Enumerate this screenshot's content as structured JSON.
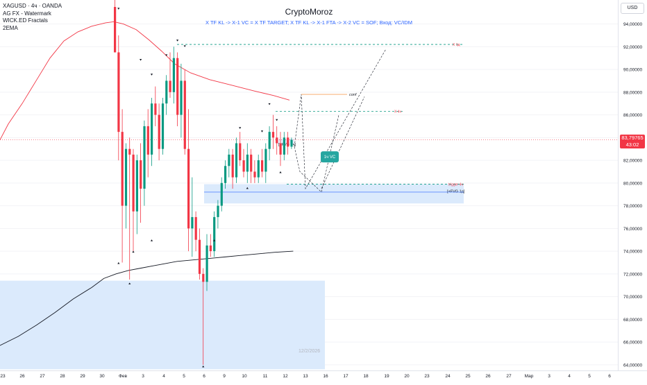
{
  "header": {
    "symbol_line": "XAGUSD · 4ч · OANDA",
    "indicators": [
      "AG FX - Watermark",
      "WICK.ED Fractals",
      "2EMA"
    ]
  },
  "watermark": {
    "title": "CryptoMoroz",
    "subtitle": "X TF KL -> X-1 VC = X TF TARGET; X TF KL -> X-1 FTA -> X-2 VC = SOF; Вход: VC/IDM",
    "date_text": "12/2/2026"
  },
  "currency_button": "USD",
  "last_price": {
    "value": "83,79765",
    "timer": "43:02",
    "color": "#f23645"
  },
  "colors": {
    "up": "#089981",
    "down": "#f23645",
    "ema_fast": "#f23645",
    "ema_slow": "#131722",
    "zone": "#dbeafc",
    "accent": "#2962ff"
  },
  "chart_data": {
    "type": "candlestick",
    "title": "CryptoMoroz",
    "y_axis": {
      "range": [
        63.5,
        95.5
      ],
      "ticks": [
        "94,00000",
        "92,00000",
        "90,00000",
        "88,00000",
        "86,00000",
        "84,00000",
        "82,00000",
        "80,00000",
        "78,00000",
        "76,00000",
        "74,00000",
        "72,00000",
        "70,00000",
        "68,00000",
        "66,00000",
        "64,00000"
      ]
    },
    "x_axis": {
      "labels": [
        "23",
        "26",
        "27",
        "28",
        "29",
        "30",
        "Фев",
        "3",
        "4",
        "5",
        "6",
        "9",
        "10",
        "11",
        "12",
        "13",
        "16",
        "17",
        "18",
        "19",
        "20",
        "23",
        "24",
        "25",
        "26",
        "27",
        "Мар",
        "3",
        "4",
        "5",
        "6"
      ]
    },
    "candles": [
      {
        "o": 95.5,
        "h": 96.5,
        "l": 91.5,
        "c": 91.5
      },
      {
        "o": 91.5,
        "h": 93.0,
        "l": 82.0,
        "c": 84.5
      },
      {
        "o": 84.5,
        "h": 86.5,
        "l": 73.0,
        "c": 78.0
      },
      {
        "o": 78.0,
        "h": 83.5,
        "l": 76.0,
        "c": 83.0
      },
      {
        "o": 83.0,
        "h": 84.0,
        "l": 71.5,
        "c": 82.5
      },
      {
        "o": 82.5,
        "h": 83.0,
        "l": 74.0,
        "c": 77.5
      },
      {
        "o": 77.5,
        "h": 82.5,
        "l": 75.5,
        "c": 82.0
      },
      {
        "o": 82.0,
        "h": 83.5,
        "l": 76.5,
        "c": 79.5
      },
      {
        "o": 79.5,
        "h": 85.5,
        "l": 78.0,
        "c": 85.0
      },
      {
        "o": 85.0,
        "h": 86.5,
        "l": 80.5,
        "c": 82.5
      },
      {
        "o": 82.5,
        "h": 87.5,
        "l": 81.5,
        "c": 87.0
      },
      {
        "o": 87.0,
        "h": 88.5,
        "l": 85.0,
        "c": 86.0
      },
      {
        "o": 86.0,
        "h": 87.0,
        "l": 82.0,
        "c": 83.0
      },
      {
        "o": 83.0,
        "h": 87.5,
        "l": 82.5,
        "c": 87.0
      },
      {
        "o": 87.0,
        "h": 89.5,
        "l": 86.0,
        "c": 89.0
      },
      {
        "o": 89.0,
        "h": 91.5,
        "l": 87.5,
        "c": 88.0
      },
      {
        "o": 88.0,
        "h": 92.0,
        "l": 87.0,
        "c": 91.0
      },
      {
        "o": 91.0,
        "h": 91.5,
        "l": 85.0,
        "c": 86.0
      },
      {
        "o": 86.0,
        "h": 90.5,
        "l": 84.0,
        "c": 89.0
      },
      {
        "o": 89.0,
        "h": 90.0,
        "l": 82.5,
        "c": 83.0
      },
      {
        "o": 83.0,
        "h": 86.5,
        "l": 74.0,
        "c": 76.0
      },
      {
        "o": 76.0,
        "h": 80.5,
        "l": 73.5,
        "c": 77.0
      },
      {
        "o": 77.0,
        "h": 77.5,
        "l": 74.0,
        "c": 75.0
      },
      {
        "o": 75.0,
        "h": 76.0,
        "l": 71.5,
        "c": 72.0
      },
      {
        "o": 72.0,
        "h": 72.5,
        "l": 64.0,
        "c": 71.3
      },
      {
        "o": 71.3,
        "h": 75.5,
        "l": 70.5,
        "c": 74.5
      },
      {
        "o": 74.5,
        "h": 75.5,
        "l": 73.5,
        "c": 74.0
      },
      {
        "o": 74.0,
        "h": 77.5,
        "l": 73.5,
        "c": 77.0
      },
      {
        "o": 77.0,
        "h": 78.5,
        "l": 76.0,
        "c": 78.0
      },
      {
        "o": 78.0,
        "h": 80.5,
        "l": 77.5,
        "c": 80.0
      },
      {
        "o": 80.0,
        "h": 82.0,
        "l": 79.5,
        "c": 81.5
      },
      {
        "o": 81.5,
        "h": 83.0,
        "l": 80.5,
        "c": 82.5
      },
      {
        "o": 82.5,
        "h": 83.0,
        "l": 79.5,
        "c": 80.5
      },
      {
        "o": 80.5,
        "h": 84.0,
        "l": 80.0,
        "c": 83.5
      },
      {
        "o": 83.5,
        "h": 84.5,
        "l": 81.5,
        "c": 82.0
      },
      {
        "o": 82.0,
        "h": 83.0,
        "l": 80.5,
        "c": 81.0
      },
      {
        "o": 81.0,
        "h": 83.5,
        "l": 80.0,
        "c": 82.5
      },
      {
        "o": 82.5,
        "h": 83.0,
        "l": 80.0,
        "c": 81.0
      },
      {
        "o": 81.0,
        "h": 82.0,
        "l": 80.0,
        "c": 80.5
      },
      {
        "o": 80.5,
        "h": 82.5,
        "l": 80.0,
        "c": 82.0
      },
      {
        "o": 82.0,
        "h": 83.0,
        "l": 80.5,
        "c": 81.0
      },
      {
        "o": 81.0,
        "h": 83.5,
        "l": 80.0,
        "c": 83.0
      },
      {
        "o": 83.0,
        "h": 85.0,
        "l": 82.0,
        "c": 84.5
      },
      {
        "o": 84.5,
        "h": 86.0,
        "l": 83.0,
        "c": 84.0
      },
      {
        "o": 84.0,
        "h": 85.0,
        "l": 82.5,
        "c": 83.5
      },
      {
        "o": 83.5,
        "h": 84.5,
        "l": 81.5,
        "c": 82.5
      },
      {
        "o": 82.5,
        "h": 84.5,
        "l": 82.0,
        "c": 84.0
      },
      {
        "o": 84.0,
        "h": 84.5,
        "l": 82.5,
        "c": 83.2
      },
      {
        "o": 83.2,
        "h": 84.0,
        "l": 83.0,
        "c": 83.8
      }
    ],
    "ema_red": [
      [
        0,
        83.8
      ],
      [
        3,
        85.2
      ],
      [
        8,
        87.0
      ],
      [
        13,
        89.0
      ],
      [
        18,
        91.0
      ],
      [
        23,
        92.5
      ],
      [
        28,
        93.3
      ],
      [
        33,
        93.8
      ],
      [
        38,
        94.1
      ],
      [
        41,
        94.2
      ],
      [
        44,
        94.0
      ],
      [
        48,
        93.5
      ],
      [
        52,
        92.6
      ],
      [
        56,
        91.6
      ],
      [
        60,
        90.5
      ],
      [
        65,
        89.7
      ],
      [
        71,
        89.1
      ],
      [
        78,
        88.6
      ],
      [
        85,
        88.1
      ],
      [
        91,
        87.7
      ],
      [
        96,
        87.3
      ]
    ],
    "ema_black": [
      [
        0,
        65.7
      ],
      [
        6,
        66.5
      ],
      [
        12,
        67.5
      ],
      [
        18,
        68.6
      ],
      [
        24,
        69.8
      ],
      [
        30,
        70.8
      ],
      [
        34,
        71.6
      ],
      [
        38,
        72.0
      ],
      [
        42,
        72.3
      ],
      [
        46,
        72.5
      ],
      [
        50,
        72.7
      ],
      [
        54,
        72.9
      ],
      [
        58,
        73.1
      ],
      [
        62,
        73.2
      ],
      [
        66,
        73.3
      ],
      [
        70,
        73.4
      ],
      [
        74,
        73.5
      ],
      [
        78,
        73.6
      ],
      [
        82,
        73.7
      ],
      [
        86,
        73.8
      ],
      [
        90,
        73.9
      ],
      [
        96,
        74.0
      ]
    ],
    "levels": [
      {
        "label": "X 1д",
        "y": 92.2
      },
      {
        "label": "X 4ч",
        "y": 86.3
      },
      {
        "label": "trigger 4ч",
        "y": 79.9
      }
    ],
    "zones": [
      {
        "label": "[+FVG 1д]",
        "y_top": 79.9,
        "y_bottom": 78.2
      },
      {
        "label": "",
        "y_top": 71.4,
        "y_bottom": 63.6
      },
      {
        "label": "[+FVG 4ч]",
        "y_top": 83.9,
        "y_bottom": 83.4
      }
    ],
    "annotations": [
      {
        "label": "conf",
        "y": 87.8
      },
      {
        "label": "1ч VC",
        "y": 82.3
      }
    ],
    "projection_paths": [
      [
        [
          48,
          83.2
        ],
        [
          55,
          87.8
        ],
        [
          62,
          79.5
        ],
        [
          75,
          91.8
        ]
      ],
      [
        [
          48,
          83.2
        ],
        [
          55,
          81.0
        ],
        [
          63,
          79.2
        ],
        [
          71,
          86.0
        ]
      ],
      [
        [
          62,
          79.5
        ],
        [
          70,
          87.6
        ]
      ]
    ],
    "fractals": [
      {
        "i": 1,
        "y": 95.3,
        "dir": "up"
      },
      {
        "i": 4,
        "y": 71.2,
        "dir": "down"
      },
      {
        "i": 5,
        "y": 74.0,
        "dir": "down"
      },
      {
        "i": 1,
        "y": 73.0,
        "dir": "down"
      },
      {
        "i": 7,
        "y": 90.8,
        "dir": "up"
      },
      {
        "i": 10,
        "y": 89.5,
        "dir": "up"
      },
      {
        "i": 10,
        "y": 75.0,
        "dir": "down"
      },
      {
        "i": 14,
        "y": 91.2,
        "dir": "up"
      },
      {
        "i": 17,
        "y": 92.5,
        "dir": "up"
      },
      {
        "i": 19,
        "y": 92.0,
        "dir": "up"
      },
      {
        "i": 24,
        "y": 63.9,
        "dir": "down"
      },
      {
        "i": 27,
        "y": 75.0,
        "dir": "down"
      },
      {
        "i": 34,
        "y": 84.8,
        "dir": "up"
      },
      {
        "i": 36,
        "y": 79.6,
        "dir": "down"
      },
      {
        "i": 40,
        "y": 84.5,
        "dir": "up"
      },
      {
        "i": 42,
        "y": 86.9,
        "dir": "up"
      },
      {
        "i": 44,
        "y": 85.5,
        "dir": "up"
      },
      {
        "i": 45,
        "y": 81.0,
        "dir": "down"
      }
    ]
  }
}
